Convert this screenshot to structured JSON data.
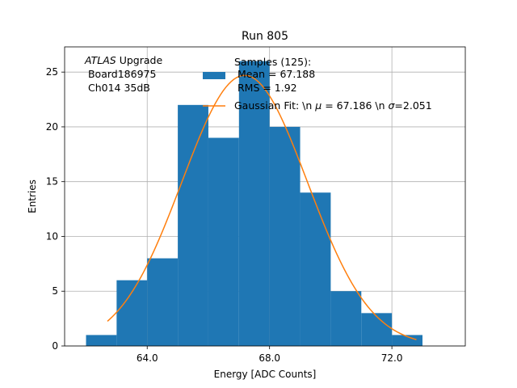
{
  "chart_data": {
    "type": "bar",
    "title": "Run 805",
    "xlabel": "Energy [ADC Counts]",
    "ylabel": "Entries",
    "xlim": [
      61.3,
      74.4
    ],
    "ylim": [
      0,
      27.3
    ],
    "grid": true,
    "x_ticks": [
      {
        "value": 64.0,
        "label": "64.0"
      },
      {
        "value": 68.0,
        "label": "68.0"
      },
      {
        "value": 72.0,
        "label": "72.0"
      }
    ],
    "y_ticks": [
      {
        "value": 0,
        "label": "0"
      },
      {
        "value": 5,
        "label": "5"
      },
      {
        "value": 10,
        "label": "10"
      },
      {
        "value": 15,
        "label": "15"
      },
      {
        "value": 20,
        "label": "20"
      },
      {
        "value": 25,
        "label": "25"
      }
    ],
    "histogram": {
      "bin_edges": [
        62,
        63,
        64,
        65,
        66,
        67,
        68,
        69,
        70,
        71,
        72,
        73
      ],
      "counts": [
        1,
        6,
        8,
        22,
        19,
        26,
        20,
        14,
        5,
        3,
        1
      ],
      "color": "#1f77b4"
    },
    "fit": {
      "mean": 67.186,
      "sigma": 2.051,
      "amplitude": 24.7,
      "x_range": [
        62.7,
        72.8
      ],
      "color": "#ff7f0e"
    },
    "annotation": {
      "atlas": "ATLAS",
      "upgrade": " Upgrade",
      "line2": " Board186975",
      "line3": " Ch014 35dB"
    },
    "legend": {
      "placement": "top-right",
      "samples": {
        "line1": "Samples (125):",
        "line2": " Mean = 67.188",
        "line3": " RMS = 1.92"
      },
      "fit": {
        "prefix": "Gaussian Fit: \\n ",
        "mu": "μ",
        "middle": " = 67.186 \\n ",
        "sigma": "σ",
        "suffix": "=2.051"
      }
    }
  }
}
